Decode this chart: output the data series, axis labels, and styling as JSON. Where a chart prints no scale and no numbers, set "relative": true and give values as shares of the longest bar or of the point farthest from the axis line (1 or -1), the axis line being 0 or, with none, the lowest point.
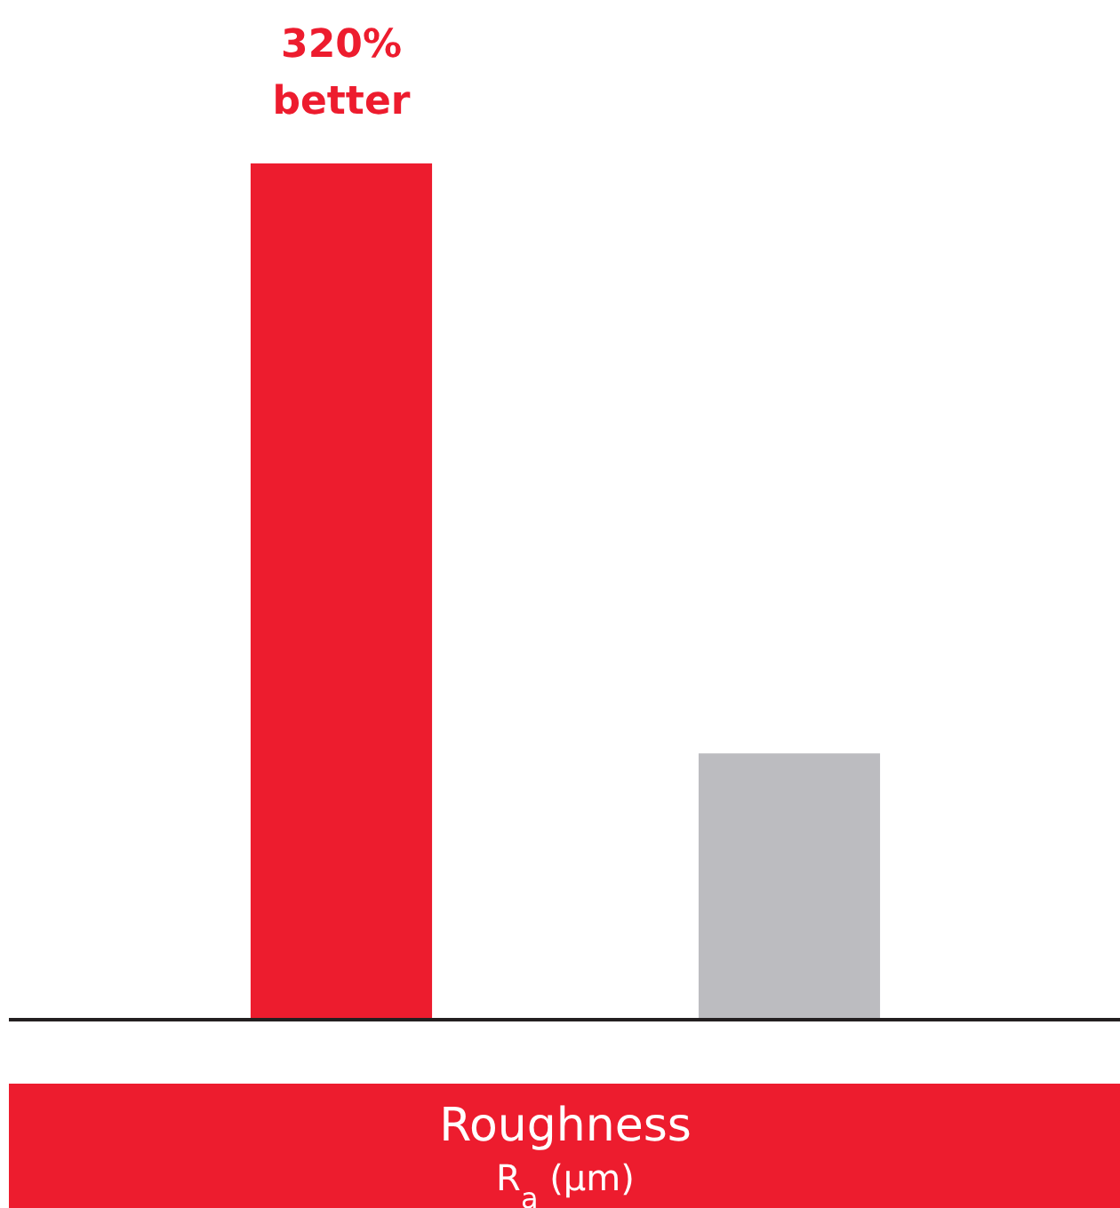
{
  "chart_data": {
    "type": "bar",
    "relative": true,
    "categories": [
      null,
      null
    ],
    "values": [
      1,
      0.311
    ],
    "colors": [
      "#ed1c2e",
      "#bcbcc0"
    ],
    "xlabel": "Roughness\nR$_{a}$ (μm)",
    "annotations": [
      "320%\nbetter"
    ]
  }
}
